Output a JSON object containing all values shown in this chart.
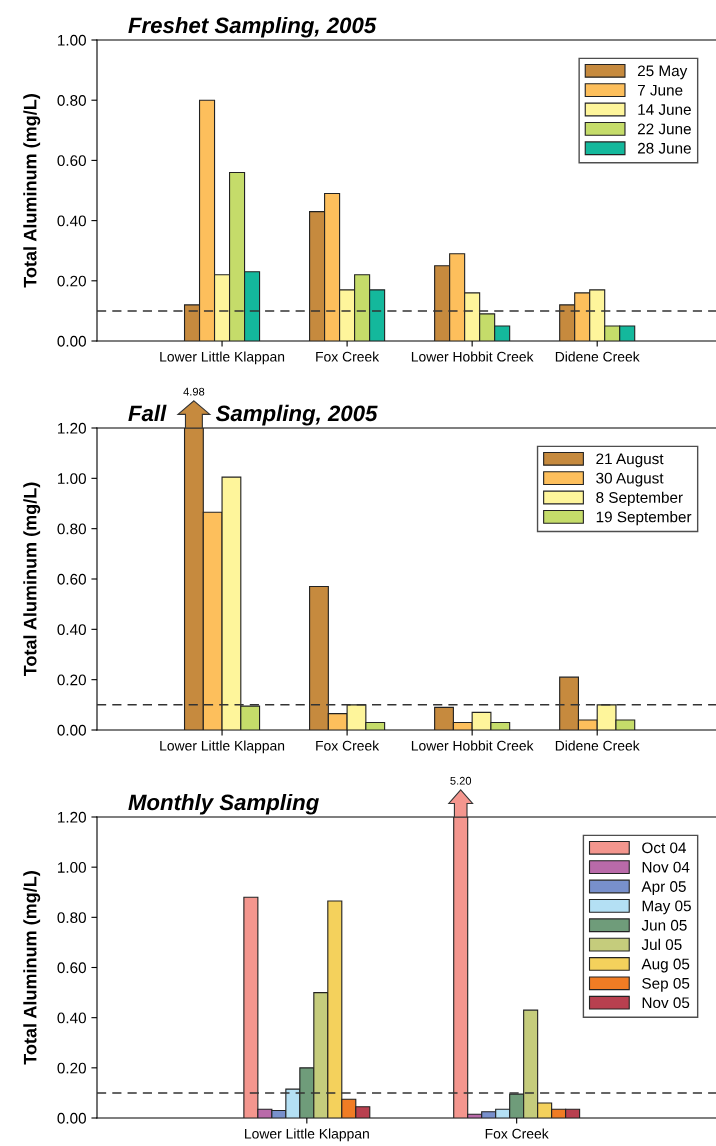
{
  "chart_data": [
    {
      "type": "bar",
      "title": "Freshet Sampling, 2005",
      "ylabel": "Total Aluminum (mg/L)",
      "categories": [
        "Lower Little Klappan",
        "Fox Creek",
        "Lower Hobbit Creek",
        "Didene Creek"
      ],
      "series": [
        {
          "name": "25 May",
          "color": "#c68a3e",
          "values": [
            0.12,
            0.43,
            0.25,
            0.12
          ]
        },
        {
          "name": "7 June",
          "color": "#fdbf5c",
          "values": [
            0.8,
            0.49,
            0.29,
            0.16
          ]
        },
        {
          "name": "14 June",
          "color": "#fef59b",
          "values": [
            0.22,
            0.17,
            0.16,
            0.17
          ]
        },
        {
          "name": "22 June",
          "color": "#c5dc6a",
          "values": [
            0.56,
            0.22,
            0.09,
            0.05
          ]
        },
        {
          "name": "28 June",
          "color": "#14b89c",
          "values": [
            0.23,
            0.17,
            0.05,
            0.05
          ]
        }
      ],
      "ylim": [
        0,
        1.0
      ],
      "yticks": [
        {
          "value": 0,
          "label": "0.00"
        },
        {
          "value": 0.2,
          "label": "0.20"
        },
        {
          "value": 0.4,
          "label": "0.40"
        },
        {
          "value": 0.6,
          "label": "0.60"
        },
        {
          "value": 0.8,
          "label": "0.80"
        },
        {
          "value": 1.0,
          "label": "1.00"
        }
      ],
      "ref_lines": [
        {
          "axis": "y",
          "value": 0.1,
          "line_style": "dashed",
          "color": "#333333"
        }
      ],
      "legend": "top right"
    },
    {
      "type": "bar",
      "title": "Fall        Sampling, 2005",
      "ylabel": "Total Aluminum (mg/L)",
      "categories": [
        "Lower Little Klappan",
        "Fox Creek",
        "Lower Hobbit Creek",
        "Didene Creek"
      ],
      "series": [
        {
          "name": "21 August",
          "color": "#c68a3e",
          "values": [
            1.2,
            0.57,
            0.09,
            0.21
          ]
        },
        {
          "name": "30 August",
          "color": "#fdbf5c",
          "values": [
            0.865,
            0.065,
            0.03,
            0.04
          ]
        },
        {
          "name": "8 September",
          "color": "#fef59b",
          "values": [
            1.005,
            0.1,
            0.07,
            0.1
          ]
        },
        {
          "name": "19 September",
          "color": "#c5dc6a",
          "values": [
            0.095,
            0.03,
            0.03,
            0.04
          ]
        }
      ],
      "ylim": [
        0,
        1.2
      ],
      "yticks": [
        {
          "value": 0,
          "label": "0.00"
        },
        {
          "value": 0.2,
          "label": "0.20"
        },
        {
          "value": 0.4,
          "label": "0.40"
        },
        {
          "value": 0.6,
          "label": "0.60"
        },
        {
          "value": 0.8,
          "label": "0.80"
        },
        {
          "value": 1.0,
          "label": "1.00"
        },
        {
          "value": 1.2,
          "label": "1.20"
        }
      ],
      "ref_lines": [
        {
          "axis": "y",
          "value": 0.1,
          "line_style": "dashed",
          "color": "#333333"
        }
      ],
      "annotations": [
        "4.98"
      ],
      "legend": "top right"
    },
    {
      "type": "bar",
      "title": "Monthly Sampling",
      "ylabel": "Total Aluminum (mg/L)",
      "categories": [
        "Lower Little Klappan",
        "Fox Creek"
      ],
      "series": [
        {
          "name": "Oct 04",
          "color": "#f4968e",
          "values": [
            0.88,
            1.2
          ]
        },
        {
          "name": "Nov 04",
          "color": "#b96aa9",
          "values": [
            0.035,
            0.015
          ]
        },
        {
          "name": "Apr 05",
          "color": "#7890cc",
          "values": [
            0.03,
            0.025
          ]
        },
        {
          "name": "May 05",
          "color": "#b4e0f4",
          "values": [
            0.115,
            0.035
          ]
        },
        {
          "name": "Jun 05",
          "color": "#6f9c7a",
          "values": [
            0.2,
            0.095
          ]
        },
        {
          "name": "Jul 05",
          "color": "#c5cc7c",
          "values": [
            0.5,
            0.43
          ]
        },
        {
          "name": "Aug 05",
          "color": "#f4d15c",
          "values": [
            0.865,
            0.06
          ]
        },
        {
          "name": "Sep 05",
          "color": "#f07c24",
          "values": [
            0.075,
            0.035
          ]
        },
        {
          "name": "Nov 05",
          "color": "#b8404f",
          "values": [
            0.045,
            0.035
          ]
        }
      ],
      "ylim": [
        0,
        1.2
      ],
      "yticks": [
        {
          "value": 0,
          "label": "0.00"
        },
        {
          "value": 0.2,
          "label": "0.20"
        },
        {
          "value": 0.4,
          "label": "0.40"
        },
        {
          "value": 0.6,
          "label": "0.60"
        },
        {
          "value": 0.8,
          "label": "0.80"
        },
        {
          "value": 1.0,
          "label": "1.00"
        },
        {
          "value": 1.2,
          "label": "1.20"
        }
      ],
      "ref_lines": [
        {
          "axis": "y",
          "value": 0.1,
          "line_style": "dashed",
          "color": "#333333"
        }
      ],
      "annotations": [
        "5.20"
      ],
      "legend": "top right"
    }
  ]
}
